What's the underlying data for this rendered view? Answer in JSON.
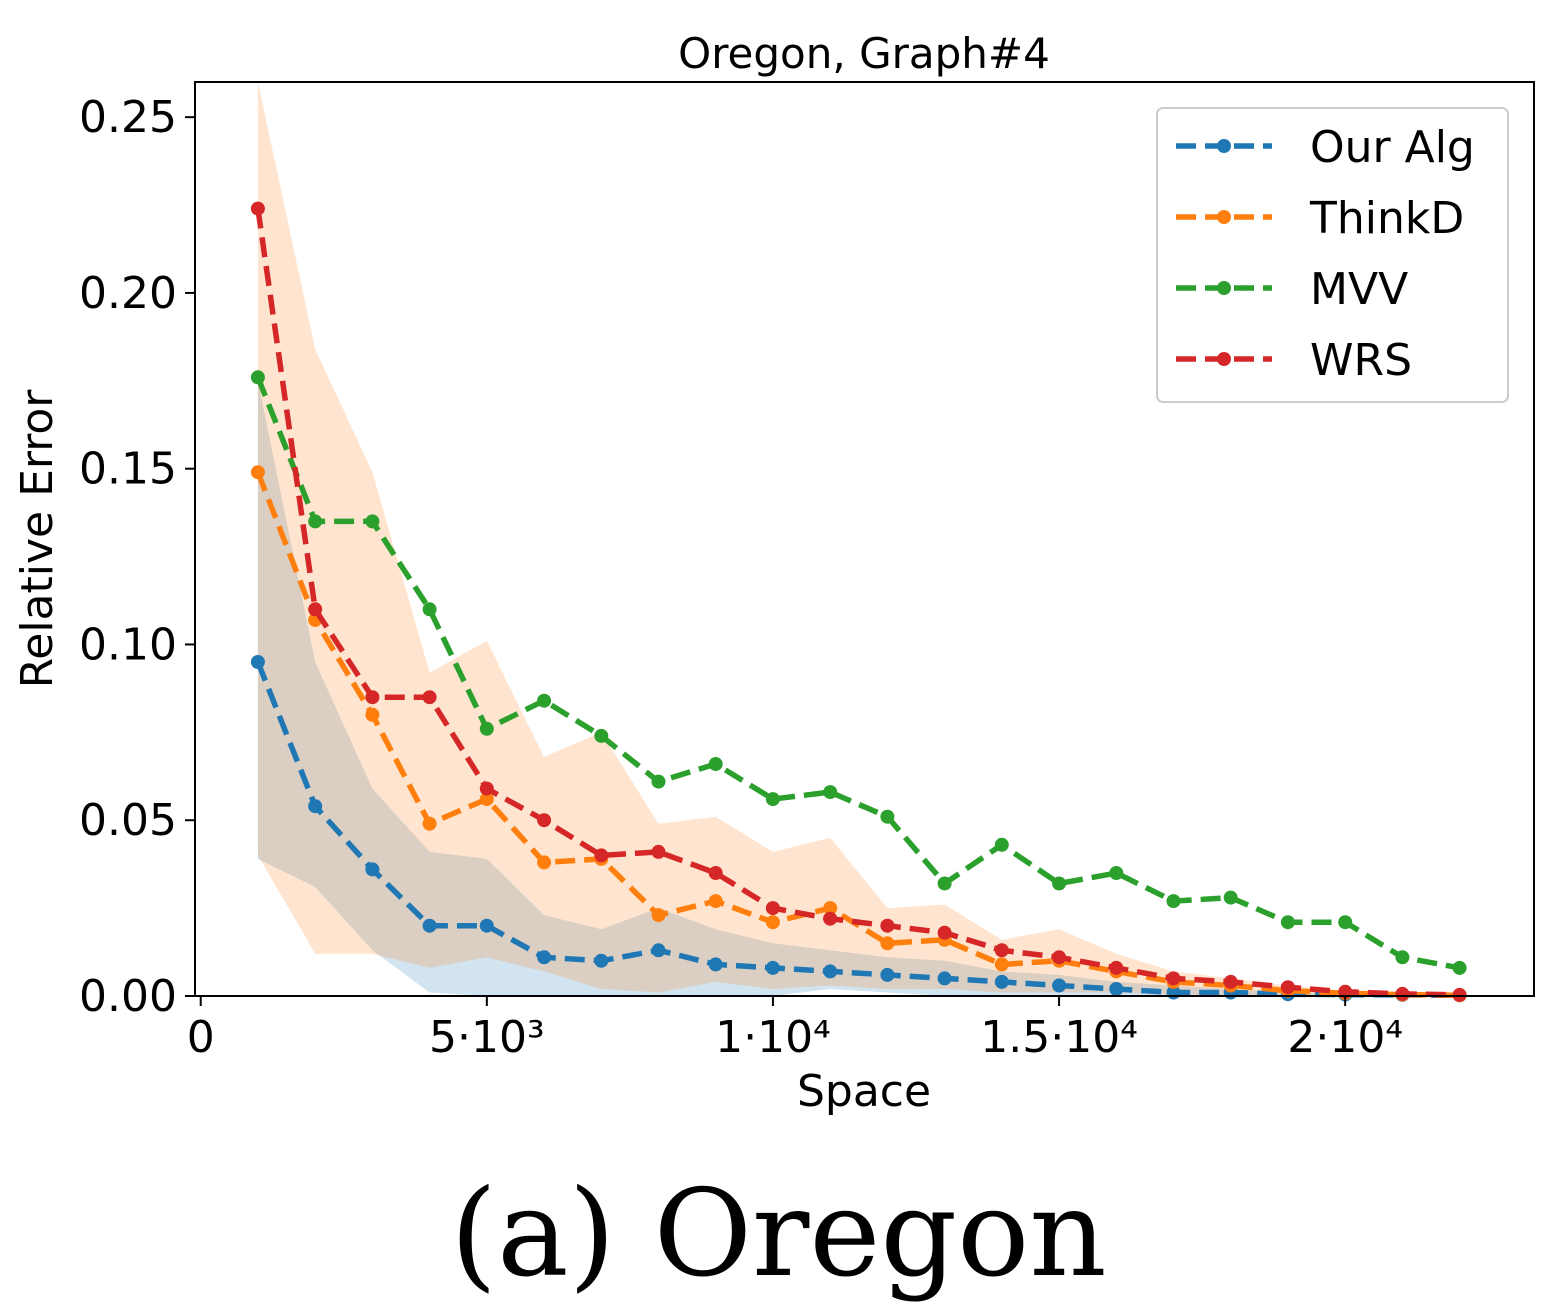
{
  "caption": "(a) Oregon",
  "chart_data": {
    "type": "line",
    "title": "Oregon, Graph#4",
    "xlabel": "Space",
    "ylabel": "Relative Error",
    "xlim": [
      -100,
      23300
    ],
    "ylim": [
      0,
      0.26
    ],
    "x_ticks": [
      {
        "value": 0,
        "label": "0"
      },
      {
        "value": 5000,
        "label": "5·10³"
      },
      {
        "value": 10000,
        "label": "1·10⁴"
      },
      {
        "value": 15000,
        "label": "1.5·10⁴"
      },
      {
        "value": 20000,
        "label": "2·10⁴"
      }
    ],
    "y_ticks": [
      {
        "value": 0,
        "label": "0.00"
      },
      {
        "value": 0.05,
        "label": "0.05"
      },
      {
        "value": 0.1,
        "label": "0.10"
      },
      {
        "value": 0.15,
        "label": "0.15"
      },
      {
        "value": 0.2,
        "label": "0.20"
      },
      {
        "value": 0.25,
        "label": "0.25"
      }
    ],
    "legend_position": "top-right",
    "grid": false,
    "x": [
      1000,
      2000,
      3000,
      4000,
      5000,
      6000,
      7000,
      8000,
      9000,
      10000,
      11000,
      12000,
      13000,
      14000,
      15000,
      16000,
      17000,
      18000,
      19000,
      20000,
      21000,
      22000
    ],
    "series": [
      {
        "name": "Our Alg",
        "color": "#1f77b4",
        "values": [
          0.095,
          0.054,
          0.036,
          0.02,
          0.02,
          0.011,
          0.01,
          0.013,
          0.009,
          0.008,
          0.007,
          0.006,
          0.005,
          0.004,
          0.003,
          0.002,
          0.001,
          0.001,
          0.0005,
          0.0004,
          0.0003,
          0.0002
        ],
        "band_upper": [
          0.175,
          0.095,
          0.059,
          0.041,
          0.039,
          0.023,
          0.019,
          0.025,
          0.019,
          0.015,
          0.013,
          0.011,
          0.01,
          0.007,
          0.006,
          0.004,
          0.003,
          0.002,
          0.001,
          0.001,
          0.0006,
          0.0004
        ],
        "band_lower": [
          0.039,
          0.031,
          0.013,
          0.001,
          0.0,
          0.0,
          0.0,
          0.0,
          0.0,
          0.0,
          0.002,
          0.001,
          0.0,
          0.0,
          0.0,
          0.0,
          0.0,
          0.0,
          0.0,
          0.0,
          0.0,
          0.0
        ]
      },
      {
        "name": "ThinkD",
        "color": "#ff7f0e",
        "values": [
          0.149,
          0.107,
          0.08,
          0.049,
          0.056,
          0.038,
          0.039,
          0.023,
          0.027,
          0.021,
          0.025,
          0.015,
          0.016,
          0.009,
          0.01,
          0.007,
          0.004,
          0.003,
          0.0015,
          0.0008,
          0.0004,
          0.0002
        ],
        "band_upper": [
          0.26,
          0.184,
          0.149,
          0.092,
          0.101,
          0.068,
          0.075,
          0.049,
          0.051,
          0.041,
          0.045,
          0.025,
          0.026,
          0.016,
          0.019,
          0.012,
          0.007,
          0.005,
          0.003,
          0.0015,
          0.0008,
          0.0004
        ],
        "band_lower": [
          0.04,
          0.012,
          0.012,
          0.008,
          0.011,
          0.007,
          0.002,
          0.001,
          0.004,
          0.002,
          0.003,
          0.002,
          0.002,
          0.001,
          0.001,
          0.001,
          0.0005,
          0.0003,
          0.0001,
          0.0001,
          0.0,
          0.0
        ]
      },
      {
        "name": "MVV",
        "color": "#2ca02c",
        "values": [
          0.176,
          0.135,
          0.135,
          0.11,
          0.076,
          0.084,
          0.074,
          0.061,
          0.066,
          0.056,
          0.058,
          0.051,
          0.032,
          0.043,
          0.032,
          0.035,
          0.027,
          0.028,
          0.021,
          0.021,
          0.011,
          0.008
        ]
      },
      {
        "name": "WRS",
        "color": "#d62728",
        "values": [
          0.224,
          0.11,
          0.085,
          0.085,
          0.059,
          0.05,
          0.04,
          0.041,
          0.035,
          0.025,
          0.022,
          0.02,
          0.018,
          0.013,
          0.011,
          0.008,
          0.005,
          0.004,
          0.0025,
          0.0012,
          0.0006,
          0.0003
        ]
      }
    ]
  }
}
